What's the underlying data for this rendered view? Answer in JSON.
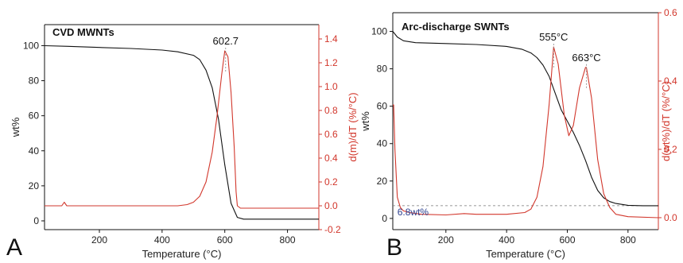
{
  "chart_data": [
    {
      "type": "line",
      "panel_letter": "A",
      "title": "CVD MWNTs",
      "xlabel": "Temperature (°C)",
      "ylabel": "wt%",
      "y2label": "d(m)/dT (%/°C)",
      "xlim": [
        25,
        900
      ],
      "ylim": [
        -5,
        112
      ],
      "y2lim": [
        -0.2,
        1.52
      ],
      "x_ticks": [
        200,
        400,
        600,
        800
      ],
      "y_ticks": [
        0,
        20,
        40,
        60,
        80,
        100
      ],
      "y2_ticks": [
        -0.2,
        0.0,
        0.2,
        0.4,
        0.6,
        0.8,
        1.0,
        1.2,
        1.4
      ],
      "y2_tick_labels": [
        "-0.2",
        "0.0",
        "0.2",
        "0.4",
        "0.6",
        "0.8",
        "1.0",
        "1.2",
        "1.4"
      ],
      "colors": {
        "weight": "#111111",
        "derivative": "#d2372c"
      },
      "annotations": [
        {
          "text": "602.7",
          "x": 602.7,
          "y2": 1.3,
          "axis": "y2"
        }
      ],
      "series": [
        {
          "axis": "y",
          "color": "#111111",
          "x": [
            25,
            100,
            200,
            300,
            400,
            450,
            500,
            520,
            540,
            560,
            580,
            600,
            620,
            640,
            660,
            700,
            800,
            900
          ],
          "y": [
            100,
            99.6,
            99.0,
            98.4,
            97.5,
            96.5,
            94.5,
            92,
            86,
            76,
            58,
            32,
            10,
            2,
            1,
            1,
            1,
            1
          ]
        },
        {
          "axis": "y2",
          "color": "#d2372c",
          "x": [
            25,
            80,
            88,
            96,
            150,
            300,
            400,
            450,
            480,
            500,
            520,
            540,
            560,
            575,
            590,
            600,
            610,
            620,
            630,
            636,
            640,
            650,
            700,
            800,
            900
          ],
          "y": [
            0.0,
            0.0,
            0.03,
            0.0,
            0.0,
            0.0,
            0.0,
            0.0,
            0.01,
            0.03,
            0.08,
            0.2,
            0.45,
            0.75,
            1.1,
            1.3,
            1.25,
            0.95,
            0.5,
            0.12,
            0.0,
            -0.02,
            -0.02,
            -0.02,
            -0.02
          ]
        }
      ]
    },
    {
      "type": "line",
      "panel_letter": "B",
      "title": "Arc-discharge SWNTs",
      "xlabel": "Temperature (°C)",
      "ylabel": "wt%",
      "y2label": "d(wt%)/dT (%/°C)",
      "xlim": [
        25,
        900
      ],
      "ylim": [
        -6,
        110
      ],
      "y2lim": [
        -0.035,
        0.6
      ],
      "x_ticks": [
        200,
        400,
        600,
        800
      ],
      "y_ticks": [
        0,
        20,
        40,
        60,
        80,
        100
      ],
      "y2_ticks": [
        0.0,
        0.2,
        0.4,
        0.6
      ],
      "y2_tick_labels": [
        "0.0",
        "0.2",
        "0.4",
        "0.6"
      ],
      "colors": {
        "weight": "#111111",
        "derivative": "#d2372c",
        "residue": "#2b3f8f"
      },
      "annotations": [
        {
          "text": "555°C",
          "x": 555,
          "y2": 0.5,
          "axis": "y2"
        },
        {
          "text": "663°C",
          "x": 663,
          "y2": 0.44,
          "axis": "y2"
        },
        {
          "text": "6.8wt%",
          "x": 40,
          "y": 6.8,
          "axis": "y"
        }
      ],
      "reference_line_y": 6.8,
      "series": [
        {
          "axis": "y",
          "color": "#111111",
          "x": [
            25,
            40,
            60,
            100,
            200,
            300,
            400,
            450,
            480,
            500,
            520,
            540,
            560,
            580,
            600,
            620,
            640,
            660,
            680,
            700,
            720,
            740,
            760,
            800,
            850,
            900
          ],
          "y": [
            100,
            97,
            95,
            94,
            93.5,
            93,
            92,
            90.5,
            88.5,
            86,
            82,
            76,
            67,
            58,
            52,
            46,
            39,
            31,
            22,
            15,
            11,
            9,
            8,
            7,
            6.8,
            6.8
          ]
        },
        {
          "axis": "y2",
          "color": "#d2372c",
          "x": [
            25,
            28,
            32,
            40,
            50,
            60,
            80,
            120,
            200,
            260,
            300,
            400,
            460,
            480,
            500,
            520,
            540,
            555,
            570,
            590,
            605,
            620,
            640,
            660,
            663,
            680,
            700,
            720,
            740,
            760,
            800,
            900
          ],
          "y": [
            0.33,
            0.33,
            0.2,
            0.06,
            0.03,
            0.02,
            0.015,
            0.01,
            0.008,
            0.012,
            0.01,
            0.01,
            0.015,
            0.025,
            0.06,
            0.15,
            0.33,
            0.5,
            0.45,
            0.3,
            0.24,
            0.27,
            0.38,
            0.44,
            0.44,
            0.35,
            0.17,
            0.07,
            0.03,
            0.01,
            0.003,
            0.0
          ]
        }
      ]
    }
  ]
}
